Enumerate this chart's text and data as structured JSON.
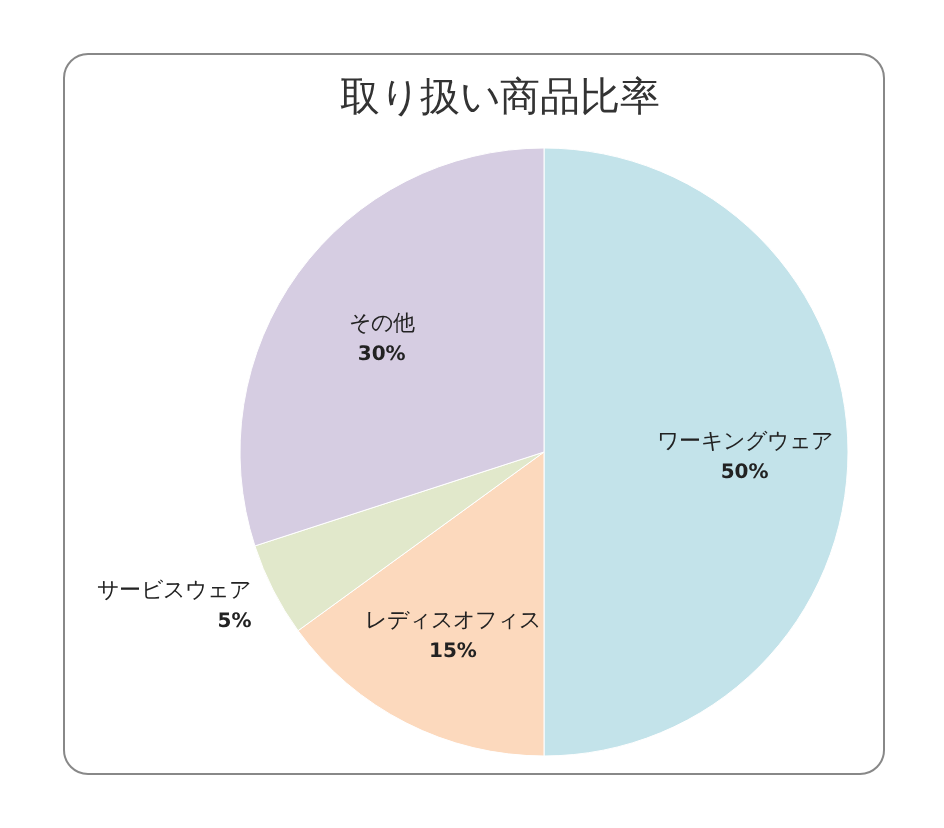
{
  "chart_data": {
    "type": "pie",
    "title": "取り扱い商品比率",
    "categories": [
      "ワーキングウェア",
      "レディスオフィス",
      "サービスウェア",
      "その他"
    ],
    "values": [
      50,
      15,
      5,
      30
    ],
    "value_labels": [
      "50%",
      "15%",
      "5%",
      "30%"
    ],
    "colors": [
      "#c3e3ea",
      "#fcd9bd",
      "#e1e8cb",
      "#d6cde2"
    ]
  }
}
